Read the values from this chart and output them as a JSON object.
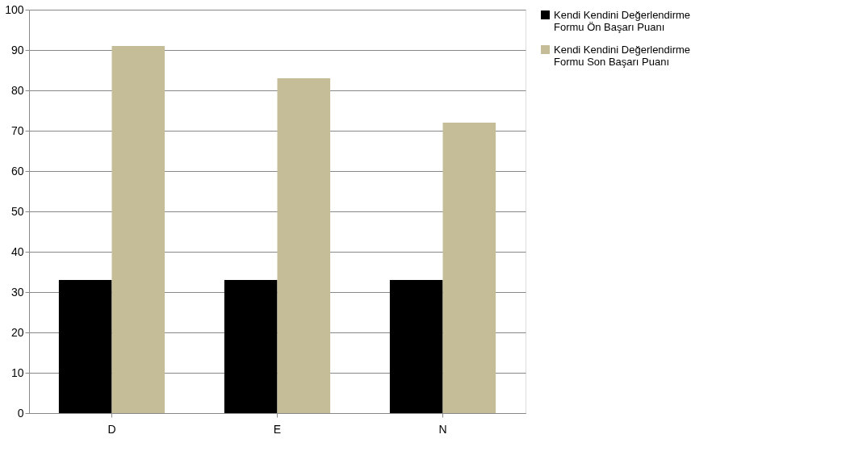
{
  "chart_data": {
    "type": "bar",
    "categories": [
      "D",
      "E",
      "N"
    ],
    "series": [
      {
        "name": "Kendi Kendini Değerlendirme Formu Ön Başarı Puanı",
        "color": "#000000",
        "values": [
          33,
          33,
          33
        ]
      },
      {
        "name": "Kendi Kendini Değerlendirme Formu Son Başarı Puanı",
        "color": "#c4bd97",
        "values": [
          91,
          83,
          72
        ]
      }
    ],
    "ylim": [
      0,
      100
    ],
    "yticks": [
      0,
      10,
      20,
      30,
      40,
      50,
      60,
      70,
      80,
      90,
      100
    ],
    "grid": "y",
    "legend": "right"
  }
}
